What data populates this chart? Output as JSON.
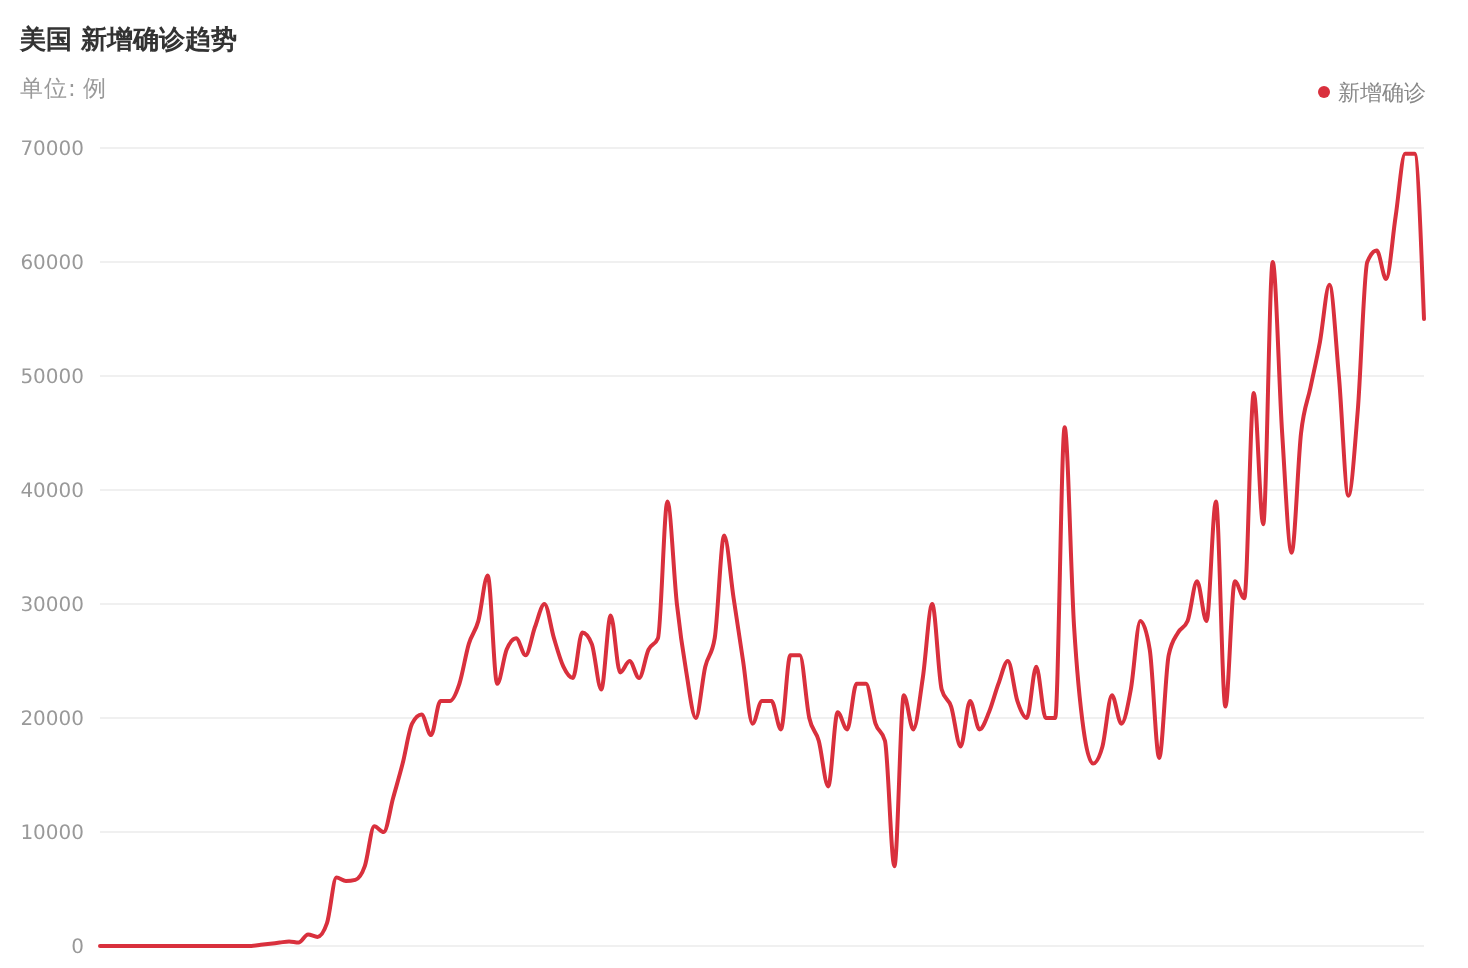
{
  "chart_data": {
    "type": "line",
    "title": "美国 新增确诊趋势",
    "subtitle": "单位: 例",
    "categories": [
      null,
      null,
      null,
      null,
      null,
      null,
      null,
      null,
      null,
      null,
      null,
      null,
      null,
      null,
      null,
      null,
      null,
      null,
      null,
      null,
      null,
      null,
      null,
      null,
      null,
      null,
      null,
      null,
      null,
      null,
      null,
      null,
      null,
      null,
      null,
      null,
      null,
      null,
      null,
      null,
      null,
      null,
      null,
      null,
      null,
      null,
      null,
      null,
      null,
      null,
      null,
      null,
      null,
      null,
      null,
      null,
      null,
      null,
      null,
      null,
      null,
      null,
      null,
      null,
      null,
      null,
      null,
      null,
      null,
      null,
      null,
      null,
      null,
      null,
      null,
      null,
      null,
      null,
      null,
      null,
      null,
      null,
      null,
      null,
      null,
      null,
      null,
      null,
      null,
      null,
      null,
      null,
      null,
      null,
      null,
      null,
      null,
      null,
      null,
      null,
      null,
      null,
      null,
      null,
      null,
      null,
      null,
      null,
      null,
      null,
      null,
      null,
      null,
      null,
      null,
      null,
      null,
      null,
      null,
      null,
      null,
      null,
      null,
      null,
      null,
      null,
      null,
      null,
      null,
      null,
      null,
      null,
      null,
      null,
      null,
      null,
      null,
      null,
      null,
      null,
      null
    ],
    "series": [
      {
        "name": "新增确诊",
        "color": "#d9303d",
        "values": [
          0,
          0,
          0,
          0,
          0,
          0,
          0,
          0,
          0,
          0,
          0,
          0,
          0,
          0,
          0,
          0,
          0,
          100,
          200,
          300,
          400,
          300,
          1000,
          800,
          2000,
          6000,
          5700,
          5800,
          7000,
          10500,
          10000,
          13000,
          16000,
          19500,
          20300,
          18500,
          21500,
          21500,
          23000,
          26500,
          28500,
          32500,
          23000,
          26000,
          27000,
          25500,
          28000,
          30000,
          27000,
          24500,
          23500,
          27500,
          26500,
          22500,
          29000,
          24000,
          25000,
          23500,
          26000,
          27000,
          39000,
          30000,
          24000,
          20000,
          24500,
          27000,
          36000,
          30500,
          25000,
          19500,
          21500,
          21500,
          19000,
          25500,
          25500,
          20000,
          18000,
          14000,
          20500,
          19000,
          23000,
          23000,
          19500,
          18000,
          7000,
          22000,
          19000,
          23500,
          30000,
          22500,
          21000,
          17500,
          21500,
          19000,
          20500,
          23000,
          25000,
          21500,
          20000,
          24500,
          20000,
          20000,
          45500,
          28000,
          19000,
          16000,
          17500,
          22000,
          19500,
          22500,
          28500,
          26000,
          16500,
          25500,
          27500,
          28500,
          32000,
          28500,
          39000,
          21000,
          32000,
          30500,
          48500,
          37000,
          60000,
          45000,
          34500,
          45000,
          49000,
          53000,
          58000,
          50000,
          39500,
          47000,
          60000,
          61000,
          58500,
          64000,
          69500,
          69500,
          55000
        ]
      }
    ],
    "ylim": [
      0,
      70000
    ],
    "yticks": [
      0,
      10000,
      20000,
      30000,
      40000,
      50000,
      60000,
      70000
    ],
    "grid": "y",
    "legend": "top right",
    "marker": "none",
    "line_style": "solid"
  }
}
